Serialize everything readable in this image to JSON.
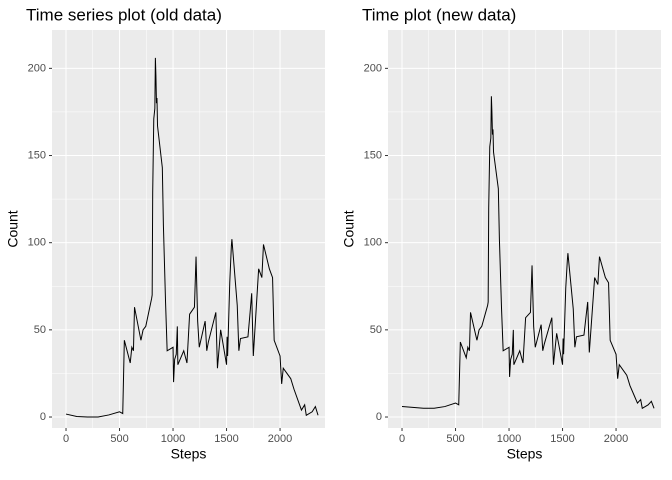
{
  "chart_data": [
    {
      "type": "line",
      "title": "Time series plot (old data)",
      "xlabel": "Steps",
      "ylabel": "Count",
      "x": [
        0,
        100,
        200,
        300,
        400,
        500,
        530,
        545,
        600,
        615,
        630,
        640,
        700,
        720,
        745,
        800,
        805,
        810,
        820,
        830,
        835,
        840,
        845,
        850,
        855,
        900,
        910,
        930,
        945,
        1000,
        1005,
        1015,
        1030,
        1040,
        1045,
        1100,
        1130,
        1155,
        1200,
        1215,
        1230,
        1245,
        1300,
        1315,
        1330,
        1400,
        1415,
        1445,
        1500,
        1505,
        1510,
        1530,
        1545,
        1550,
        1600,
        1615,
        1630,
        1700,
        1720,
        1735,
        1750,
        1800,
        1830,
        1845,
        1900,
        1930,
        1945,
        2000,
        2015,
        2030,
        2100,
        2130,
        2200,
        2230,
        2245,
        2300,
        2330,
        2355
      ],
      "series": [
        {
          "name": "Count",
          "color": "#000000",
          "values": [
            1.7,
            0.3,
            0,
            0,
            1.2,
            3,
            2,
            44,
            31,
            40,
            38,
            63,
            44,
            50,
            52,
            68,
            70,
            129,
            171,
            177,
            206,
            196,
            180,
            183,
            167,
            143,
            110,
            66,
            38,
            40,
            20,
            33,
            36,
            52,
            30,
            38,
            31,
            59,
            63,
            92,
            55,
            40,
            55,
            38,
            43,
            60,
            28,
            50,
            30,
            46,
            35,
            77,
            98,
            102,
            64,
            38,
            45,
            46,
            60,
            71,
            35,
            85,
            80,
            99,
            85,
            80,
            44,
            35,
            19,
            28,
            22,
            16,
            4,
            7,
            1,
            3,
            6,
            1
          ]
        }
      ],
      "xlim": [
        -131,
        2420
      ],
      "ylim": [
        -6.3,
        222
      ],
      "xticks": [
        0,
        500,
        1000,
        1500,
        2000
      ],
      "yticks": [
        0,
        50,
        100,
        150,
        200
      ],
      "grid": true
    },
    {
      "type": "line",
      "title": "Time plot (new data)",
      "xlabel": "Steps",
      "ylabel": "Count",
      "x": [
        0,
        100,
        200,
        300,
        400,
        500,
        530,
        545,
        600,
        615,
        630,
        640,
        700,
        720,
        745,
        800,
        805,
        810,
        820,
        830,
        835,
        840,
        845,
        850,
        855,
        900,
        910,
        930,
        945,
        1000,
        1005,
        1015,
        1030,
        1040,
        1045,
        1100,
        1130,
        1155,
        1200,
        1215,
        1230,
        1245,
        1300,
        1315,
        1330,
        1400,
        1415,
        1445,
        1500,
        1505,
        1510,
        1530,
        1545,
        1550,
        1600,
        1615,
        1630,
        1700,
        1720,
        1735,
        1750,
        1800,
        1830,
        1845,
        1900,
        1930,
        1945,
        2000,
        2015,
        2030,
        2100,
        2130,
        2200,
        2230,
        2245,
        2300,
        2330,
        2355
      ],
      "series": [
        {
          "name": "Count",
          "color": "#000000",
          "values": [
            6,
            5.5,
            5,
            5,
            6,
            8,
            7,
            43,
            34,
            40,
            38,
            60,
            44,
            50,
            52,
            64,
            66,
            120,
            155,
            160,
            184,
            175,
            162,
            165,
            152,
            131,
            102,
            62,
            38,
            40,
            23,
            33,
            36,
            50,
            30,
            38,
            31,
            57,
            60,
            87,
            52,
            40,
            53,
            38,
            42,
            57,
            30,
            48,
            30,
            45,
            36,
            74,
            90,
            94,
            62,
            40,
            46,
            47,
            58,
            66,
            37,
            80,
            76,
            92,
            80,
            77,
            44,
            36,
            22,
            30,
            24,
            18,
            8,
            10,
            5,
            7,
            9,
            5
          ]
        }
      ],
      "xlim": [
        -131,
        2420
      ],
      "ylim": [
        -6.3,
        222
      ],
      "xticks": [
        0,
        500,
        1000,
        1500,
        2000
      ],
      "yticks": [
        0,
        50,
        100,
        150,
        200
      ],
      "grid": true
    }
  ]
}
